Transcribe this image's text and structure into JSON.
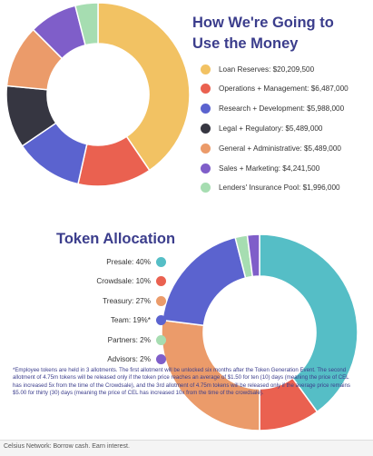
{
  "chart_data": [
    {
      "type": "pie",
      "title": "How We're Going to Use the Money",
      "slices": [
        {
          "label": "Loan Reserves: $20,209,500",
          "value": 20209500,
          "color": "#f2c263"
        },
        {
          "label": "Operations + Management: $6,487,000",
          "value": 6487000,
          "color": "#ea6150"
        },
        {
          "label": "Research + Development: $5,988,000",
          "value": 5988000,
          "color": "#5b63cf"
        },
        {
          "label": "Legal + Regulatory: $5,489,000",
          "value": 5489000,
          "color": "#363641"
        },
        {
          "label": "General + Administrative: $5,489,000",
          "value": 5489000,
          "color": "#eb9b6a"
        },
        {
          "label": "Sales + Marketing: $4,241,500",
          "value": 4241500,
          "color": "#7f5ec9"
        },
        {
          "label": "Lenders' Insurance Pool: $1,996,000",
          "value": 1996000,
          "color": "#a6ddb1"
        }
      ]
    },
    {
      "type": "pie",
      "title": "Token Allocation",
      "slices": [
        {
          "label": "Presale: 40%",
          "value": 40,
          "color": "#55bec6"
        },
        {
          "label": "Crowdsale: 10%",
          "value": 10,
          "color": "#ea6150"
        },
        {
          "label": "Treasury: 27%",
          "value": 27,
          "color": "#eb9b6a"
        },
        {
          "label": "Team: 19%*",
          "value": 19,
          "color": "#5b63cf"
        },
        {
          "label": "Partners: 2%",
          "value": 2,
          "color": "#a6ddb1"
        },
        {
          "label": "Advisors: 2%",
          "value": 2,
          "color": "#7f5ec9"
        }
      ]
    }
  ],
  "footnote": "*Employee tokens are held in 3 allotments. The first allotment will be unlocked six months after the Token Generation Event. The second allotment of 4.75m tokens will be released only if the token price reaches an average of $1.50 for ten (10) days (meaning the price of CEL has increased 5x from the time of the Crowdsale), and the 3rd allotment of 4.75m tokens will be released only if the average price remains $5.00 for thirty (30) days (meaning the price of CEL has increased 10x from the time of the crowdsale).",
  "footer": "Celsius Network: Borrow cash. Earn interest."
}
